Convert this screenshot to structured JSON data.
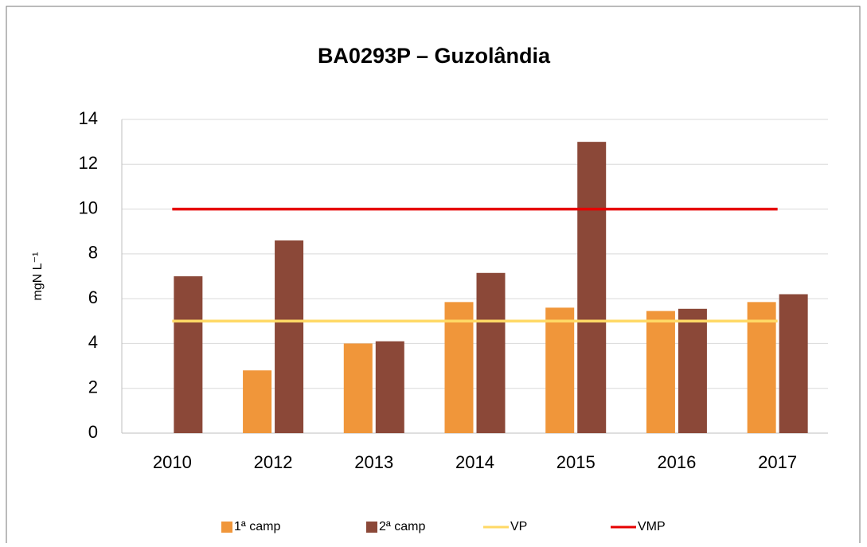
{
  "chart_data": {
    "type": "bar_line",
    "title": "BA0293P – Guzolândia",
    "y_label": "mgN L⁻¹",
    "categories": [
      "2010",
      "2012",
      "2013",
      "2014",
      "2015",
      "2016",
      "2017"
    ],
    "series": [
      {
        "name": "1ª camp",
        "kind": "bar",
        "color": "#f0963a",
        "values": [
          null,
          2.8,
          4.0,
          5.85,
          5.6,
          5.45,
          5.85
        ]
      },
      {
        "name": "2ª camp",
        "kind": "bar",
        "color": "#8b4838",
        "values": [
          7.0,
          8.6,
          4.1,
          7.15,
          13.0,
          5.55,
          6.2
        ]
      },
      {
        "name": "VP",
        "kind": "line",
        "color": "#ffd966",
        "values": [
          5,
          5,
          5,
          5,
          5,
          5,
          5
        ]
      },
      {
        "name": "VMP",
        "kind": "line",
        "color": "#e60000",
        "values": [
          10,
          10,
          10,
          10,
          10,
          10,
          10
        ]
      }
    ],
    "ylim": [
      0,
      14
    ],
    "yticks": [
      0,
      2,
      4,
      6,
      8,
      10,
      12,
      14
    ],
    "grid": true,
    "legend": "bottom"
  }
}
